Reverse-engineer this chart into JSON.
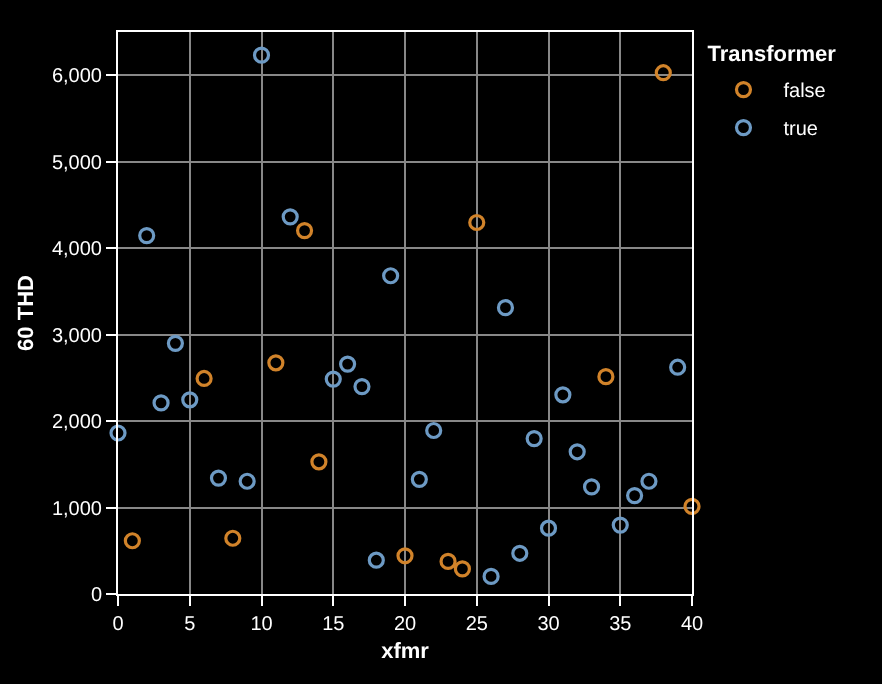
{
  "chart_data": {
    "type": "scatter",
    "xlabel": "xfmr",
    "ylabel": "60 THD",
    "legend_title": "Transformer",
    "xlim": [
      0,
      40
    ],
    "xticks": [
      0,
      5,
      10,
      15,
      20,
      25,
      30,
      35,
      40
    ],
    "ylim": [
      0,
      6500
    ],
    "yticks": [
      {
        "value": 0,
        "label": "0"
      },
      {
        "value": 1000,
        "label": "1,000"
      },
      {
        "value": 2000,
        "label": "2,000"
      },
      {
        "value": 3000,
        "label": "3,000"
      },
      {
        "value": 4000,
        "label": "4,000"
      },
      {
        "value": 5000,
        "label": "5,000"
      },
      {
        "value": 6000,
        "label": "6,000"
      }
    ],
    "grid": true,
    "legend": "top right",
    "marker": "circle",
    "series": [
      {
        "name": "false",
        "color": "#d1832a",
        "x": [
          1,
          6,
          8,
          11,
          13,
          14,
          20,
          23,
          24,
          25,
          34,
          38,
          40
        ],
        "values": [
          616,
          2493,
          645,
          2674,
          4203,
          1529,
          442,
          377,
          290,
          4297,
          2514,
          6029,
          1014
        ]
      },
      {
        "name": "true",
        "color": "#6d9ac4",
        "x": [
          0,
          2,
          3,
          4,
          5,
          7,
          9,
          10,
          12,
          15,
          16,
          17,
          18,
          19,
          21,
          22,
          26,
          27,
          28,
          29,
          30,
          31,
          32,
          33,
          35,
          36,
          37,
          39
        ],
        "values": [
          1862,
          4145,
          2210,
          2899,
          2246,
          1341,
          1304,
          6232,
          4362,
          2486,
          2659,
          2399,
          391,
          3681,
          1326,
          1891,
          203,
          3312,
          471,
          1797,
          761,
          2304,
          1645,
          1239,
          797,
          1138,
          1304,
          2623
        ]
      }
    ]
  }
}
